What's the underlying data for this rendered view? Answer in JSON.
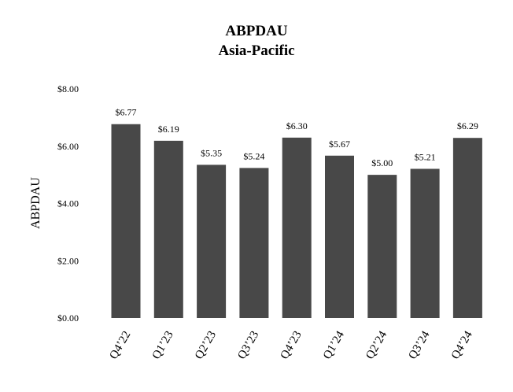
{
  "chart_data": {
    "type": "bar",
    "title": "ABPDAU",
    "subtitle": "Asia-Pacific",
    "ylabel": "ABPDAU",
    "xlabel": "",
    "categories": [
      "Q4’22",
      "Q1’23",
      "Q2’23",
      "Q3’23",
      "Q4’23",
      "Q1’24",
      "Q2’24",
      "Q3’24",
      "Q4’24"
    ],
    "values": [
      6.77,
      6.19,
      5.35,
      5.24,
      6.3,
      5.67,
      5.0,
      5.21,
      6.29
    ],
    "data_labels": [
      "$6.77",
      "$6.19",
      "$5.35",
      "$5.24",
      "$6.30",
      "$5.67",
      "$5.00",
      "$5.21",
      "$6.29"
    ],
    "ylim": [
      0,
      8
    ],
    "yticks": [
      0,
      2,
      4,
      6,
      8
    ],
    "ytick_labels": [
      "$0.00",
      "$2.00",
      "$4.00",
      "$6.00",
      "$8.00"
    ],
    "grid": false,
    "legend": "none",
    "bar_color": "#484848"
  }
}
